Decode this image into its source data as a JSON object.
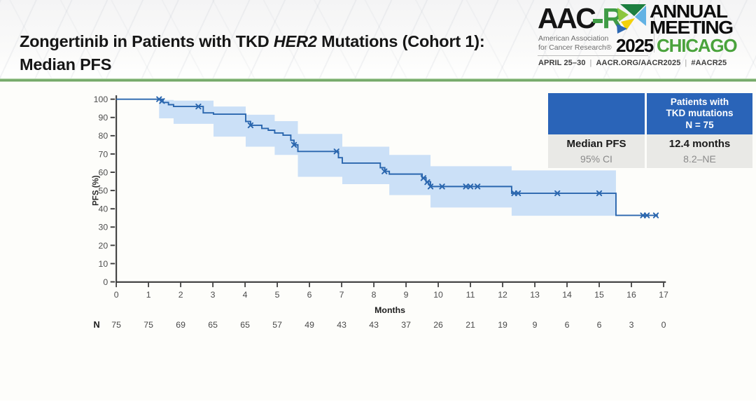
{
  "header": {
    "title_before_italic": "Zongertinib in Patients with TKD ",
    "title_italic": "HER2",
    "title_after_italic": " Mutations (Cohort 1):",
    "title_line2": "Median PFS"
  },
  "logo": {
    "wordmark_prefix": "AAC",
    "wordmark_suffix": "R",
    "org_line1": "American Association",
    "org_line2": "for Cancer Research®",
    "meeting_line1": "ANNUAL",
    "meeting_line2": "MEETING",
    "meeting_year": "2025",
    "meeting_city": "CHICAGO",
    "tagline_date": "APRIL 25–30",
    "tagline_sep1": "|",
    "tagline_url": "AACR.ORG/AACR2025",
    "tagline_sep2": "|",
    "tagline_hashtag": "#AACR25"
  },
  "stats_table": {
    "header_line1": "Patients with",
    "header_line2": "TKD mutations",
    "header_line3": "N = 75",
    "row1_label": "Median PFS",
    "row1_value": "12.4 months",
    "row2_label": "95% CI",
    "row2_value": "8.2–NE"
  },
  "chart_data": {
    "type": "line",
    "subtype": "kaplan-meier-step",
    "series_name": "Patients with TKD mutations (N = 75)",
    "xlabel": "Months",
    "ylabel": "PFS (%)",
    "xlim": [
      0,
      17
    ],
    "ylim": [
      0,
      100
    ],
    "xticks": [
      0,
      1,
      2,
      3,
      4,
      5,
      6,
      7,
      8,
      9,
      10,
      11,
      12,
      13,
      14,
      15,
      16,
      17
    ],
    "yticks": [
      0,
      10,
      20,
      30,
      40,
      50,
      60,
      70,
      80,
      90,
      100
    ],
    "line_color": "#2a66ae",
    "band_color": "#cbe0f7",
    "axis_color": "#3c3c3c",
    "tick_label_color": "#4d4d4d",
    "median_pfs_months": 12.4,
    "ci_95": "8.2–NE",
    "steps": [
      [
        0,
        100
      ],
      [
        1.45,
        98.2
      ],
      [
        1.62,
        97
      ],
      [
        1.78,
        96
      ],
      [
        2.7,
        92.5
      ],
      [
        3.02,
        91.8
      ],
      [
        4.02,
        87.8
      ],
      [
        4.17,
        85.7
      ],
      [
        4.52,
        84
      ],
      [
        4.72,
        83
      ],
      [
        4.92,
        81.5
      ],
      [
        5.18,
        80.3
      ],
      [
        5.42,
        77.5
      ],
      [
        5.52,
        75
      ],
      [
        5.64,
        71.4
      ],
      [
        6.9,
        68
      ],
      [
        7.02,
        65
      ],
      [
        8.2,
        62.5
      ],
      [
        8.34,
        60.5
      ],
      [
        8.48,
        59
      ],
      [
        9.5,
        57
      ],
      [
        9.62,
        54.8
      ],
      [
        9.76,
        52.2
      ],
      [
        12.28,
        48.5
      ],
      [
        15.52,
        36.4
      ]
    ],
    "end_time": 16.82,
    "censor_marks": [
      [
        1.33,
        100
      ],
      [
        1.42,
        99
      ],
      [
        2.55,
        96
      ],
      [
        4.17,
        85.7
      ],
      [
        5.52,
        75
      ],
      [
        6.84,
        71.4
      ],
      [
        8.33,
        60.5
      ],
      [
        9.54,
        56.8
      ],
      [
        9.66,
        54.6
      ],
      [
        9.76,
        52.2
      ],
      [
        10.12,
        52.2
      ],
      [
        10.86,
        52.2
      ],
      [
        11.0,
        52.2
      ],
      [
        11.22,
        52.2
      ],
      [
        12.36,
        48.5
      ],
      [
        12.48,
        48.5
      ],
      [
        13.7,
        48.5
      ],
      [
        15.0,
        48.5
      ],
      [
        16.36,
        36.4
      ],
      [
        16.48,
        36.4
      ],
      [
        16.76,
        36.4
      ]
    ],
    "ci_segments": [
      [
        1.33,
        1.78,
        99.6,
        89.5
      ],
      [
        1.78,
        3.02,
        99.2,
        86.5
      ],
      [
        3.02,
        4.02,
        96,
        79.5
      ],
      [
        4.02,
        4.92,
        91.5,
        74
      ],
      [
        4.92,
        5.64,
        88,
        69.5
      ],
      [
        5.64,
        7.02,
        81,
        57.5
      ],
      [
        7.02,
        8.48,
        74,
        53.5
      ],
      [
        8.48,
        9.76,
        69.5,
        47.5
      ],
      [
        9.76,
        12.28,
        63.3,
        40.7
      ],
      [
        12.28,
        15.52,
        61,
        36.2
      ]
    ],
    "at_risk": {
      "label": "N",
      "times": [
        0,
        1,
        2,
        3,
        4,
        5,
        6,
        7,
        8,
        9,
        10,
        11,
        12,
        13,
        14,
        15,
        16,
        17
      ],
      "counts": [
        75,
        75,
        69,
        65,
        65,
        57,
        49,
        43,
        43,
        37,
        26,
        21,
        19,
        9,
        6,
        6,
        3,
        0
      ]
    }
  }
}
